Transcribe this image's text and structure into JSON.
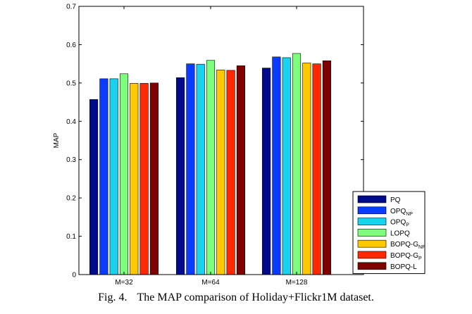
{
  "chart_data": {
    "type": "bar",
    "ylabel": "MAP",
    "xlabel": "",
    "ylim": [
      0,
      0.7
    ],
    "yticks": [
      "0",
      "0.1",
      "0.2",
      "0.3",
      "0.4",
      "0.5",
      "0.6",
      "0.7"
    ],
    "categories": [
      "M=32",
      "M=64",
      "M=128"
    ],
    "legend_position": "bottom-right",
    "grid": false,
    "series": [
      {
        "name": "PQ",
        "name_base": "PQ",
        "name_sub": "",
        "color": "#000a8c",
        "values": [
          0.457,
          0.514,
          0.539
        ]
      },
      {
        "name": "OPQNP",
        "name_base": "OPQ",
        "name_sub": "NP",
        "color": "#0a3cff",
        "values": [
          0.511,
          0.55,
          0.568
        ]
      },
      {
        "name": "OPQP",
        "name_base": "OPQ",
        "name_sub": "P",
        "color": "#19d2f0",
        "values": [
          0.511,
          0.549,
          0.566
        ]
      },
      {
        "name": "LOPQ",
        "name_base": "LOPQ",
        "name_sub": "",
        "color": "#7dff7d",
        "values": [
          0.524,
          0.559,
          0.577
        ]
      },
      {
        "name": "BOPQ-GNP",
        "name_base": "BOPQ-G",
        "name_sub": "NP",
        "color": "#ffc800",
        "values": [
          0.499,
          0.534,
          0.552
        ]
      },
      {
        "name": "BOPQ-GP",
        "name_base": "BOPQ-G",
        "name_sub": "P",
        "color": "#ff2800",
        "values": [
          0.499,
          0.533,
          0.55
        ]
      },
      {
        "name": "BOPQ-L",
        "name_base": "BOPQ-L",
        "name_sub": "",
        "color": "#800000",
        "values": [
          0.5,
          0.545,
          0.558
        ]
      }
    ]
  },
  "caption": {
    "fig_label": "Fig. 4.",
    "text": "The MAP comparison of Holiday+Flickr1M dataset."
  }
}
